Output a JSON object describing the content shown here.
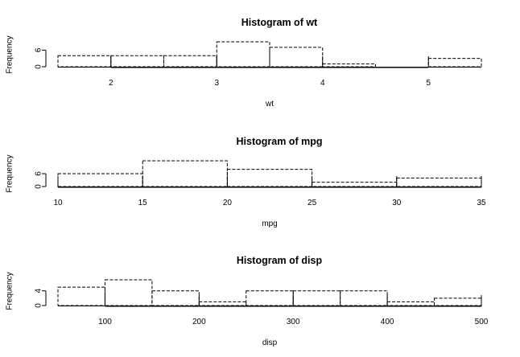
{
  "chart_data": [
    {
      "type": "bar",
      "title": "Histogram of wt",
      "xlabel": "wt",
      "ylabel": "Frequency",
      "bins": [
        {
          "from": 1.5,
          "to": 2.0,
          "count": 4
        },
        {
          "from": 2.0,
          "to": 2.5,
          "count": 4
        },
        {
          "from": 2.5,
          "to": 3.0,
          "count": 4
        },
        {
          "from": 3.0,
          "to": 3.5,
          "count": 9
        },
        {
          "from": 3.5,
          "to": 4.0,
          "count": 7
        },
        {
          "from": 4.0,
          "to": 4.5,
          "count": 1
        },
        {
          "from": 4.5,
          "to": 5.0,
          "count": 0
        },
        {
          "from": 5.0,
          "to": 5.5,
          "count": 3
        }
      ],
      "x_ticks": [
        2,
        3,
        4,
        5
      ],
      "y_ticks": [
        0,
        6
      ],
      "xlim": [
        1.5,
        5.5
      ],
      "ylim": [
        0,
        9
      ]
    },
    {
      "type": "bar",
      "title": "Histogram of mpg",
      "xlabel": "mpg",
      "ylabel": "Frequency",
      "bins": [
        {
          "from": 10,
          "to": 15,
          "count": 6
        },
        {
          "from": 15,
          "to": 20,
          "count": 12
        },
        {
          "from": 20,
          "to": 25,
          "count": 8
        },
        {
          "from": 25,
          "to": 30,
          "count": 2
        },
        {
          "from": 30,
          "to": 35,
          "count": 4
        }
      ],
      "x_ticks": [
        10,
        15,
        20,
        25,
        30,
        35
      ],
      "y_ticks": [
        0,
        6
      ],
      "xlim": [
        10,
        35
      ],
      "ylim": [
        0,
        12
      ]
    },
    {
      "type": "bar",
      "title": "Histogram of disp",
      "xlabel": "disp",
      "ylabel": "Frequency",
      "bins": [
        {
          "from": 50,
          "to": 100,
          "count": 5
        },
        {
          "from": 100,
          "to": 150,
          "count": 7
        },
        {
          "from": 150,
          "to": 200,
          "count": 4
        },
        {
          "from": 200,
          "to": 250,
          "count": 1
        },
        {
          "from": 250,
          "to": 300,
          "count": 4
        },
        {
          "from": 300,
          "to": 350,
          "count": 4
        },
        {
          "from": 350,
          "to": 400,
          "count": 4
        },
        {
          "from": 400,
          "to": 450,
          "count": 1
        },
        {
          "from": 450,
          "to": 500,
          "count": 2
        }
      ],
      "x_ticks": [
        100,
        200,
        300,
        400,
        500
      ],
      "y_ticks": [
        0,
        4
      ],
      "xlim": [
        50,
        500
      ],
      "ylim": [
        0,
        7
      ]
    }
  ]
}
